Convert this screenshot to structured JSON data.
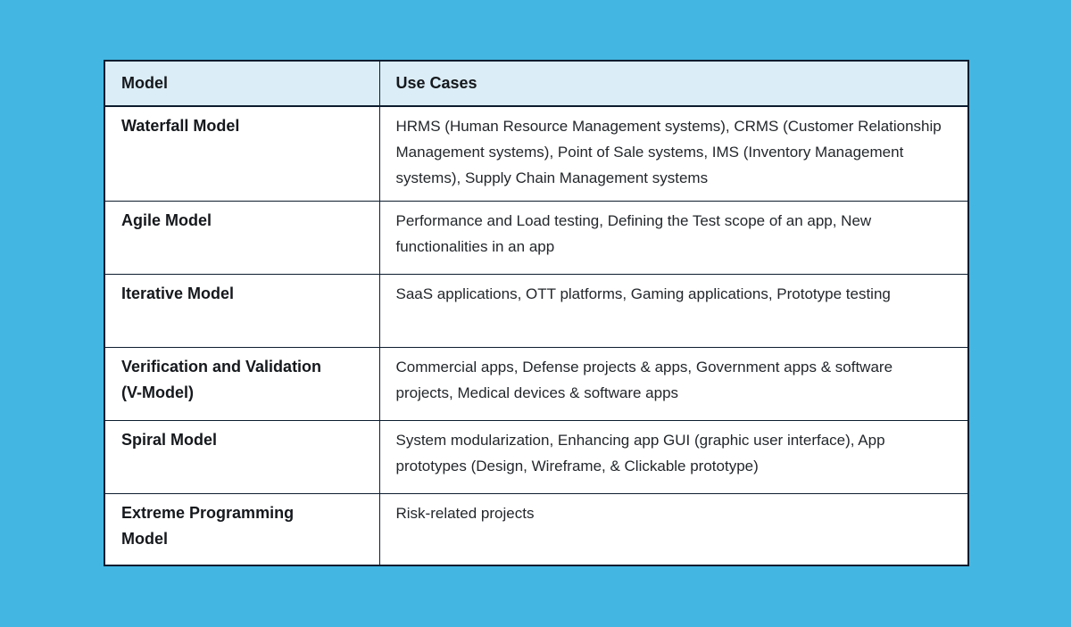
{
  "colors": {
    "page-background": "#43b6e2",
    "header-background": "#dbedf6",
    "table-border": "#0c1c2e",
    "cell-background": "#ffffff",
    "heading-text": "#15181c",
    "body-text": "#23272b"
  },
  "table": {
    "columns": [
      {
        "key": "model",
        "label": "Model"
      },
      {
        "key": "use_cases",
        "label": "Use Cases"
      }
    ],
    "rows": [
      {
        "model": "Waterfall Model",
        "use_cases": "HRMS (Human Resource Management systems), CRMS (Customer Relationship Management systems), Point of Sale systems, IMS (Inventory Management systems), Supply Chain Management systems"
      },
      {
        "model": "Agile Model",
        "use_cases": "Performance and Load testing, Defining the Test scope of an app, New functionalities in an app"
      },
      {
        "model": "Iterative Model",
        "use_cases": "SaaS applications, OTT platforms, Gaming applications, Prototype testing"
      },
      {
        "model": "Verification and Validation\n(V-Model)",
        "use_cases": "Commercial apps, Defense projects & apps, Government apps & software projects, Medical devices & software apps"
      },
      {
        "model": "Spiral Model",
        "use_cases": "System modularization, Enhancing app GUI (graphic user interface), App prototypes (Design, Wireframe, & Clickable prototype)"
      },
      {
        "model": "Extreme Programming\nModel",
        "use_cases": "Risk-related projects"
      }
    ]
  }
}
